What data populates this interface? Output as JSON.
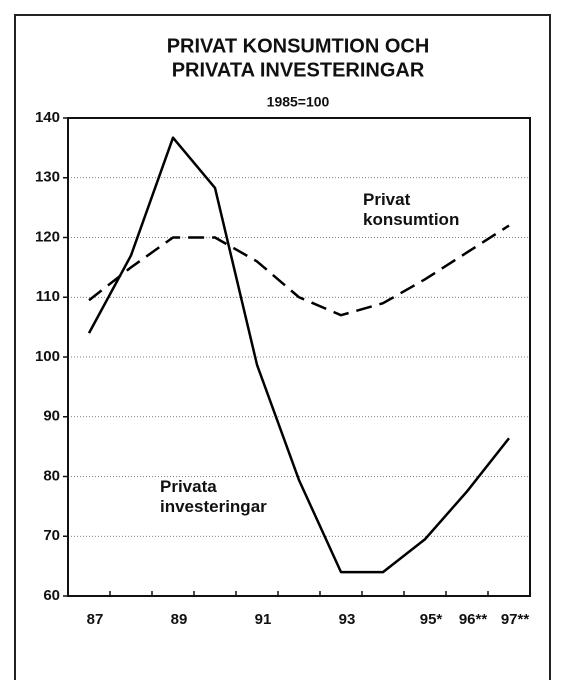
{
  "chart_data": {
    "type": "line",
    "title": [
      "PRIVAT KONSUMTION OCH",
      "PRIVATA INVESTERINGAR"
    ],
    "subtitle": "1985=100",
    "categories": [
      "87",
      null,
      "89",
      null,
      "91",
      null,
      "93",
      null,
      "95*",
      "96**",
      "97**"
    ],
    "series": [
      {
        "name": "Privata investeringar",
        "color": "#000000",
        "dash": false,
        "values": [
          104,
          117,
          136.7,
          128.3,
          98.7,
          79.4,
          64,
          64,
          69.5,
          77.5,
          86.4
        ]
      },
      {
        "name": "Privat konsumtion",
        "color": "#000000",
        "dash": true,
        "values": [
          109.5,
          115,
          120,
          120,
          116,
          110,
          107,
          109,
          113,
          117.5,
          122
        ]
      }
    ],
    "ylim": [
      60,
      140
    ],
    "yticks": [
      60,
      70,
      80,
      90,
      100,
      110,
      120,
      130,
      140
    ],
    "grid": true
  }
}
